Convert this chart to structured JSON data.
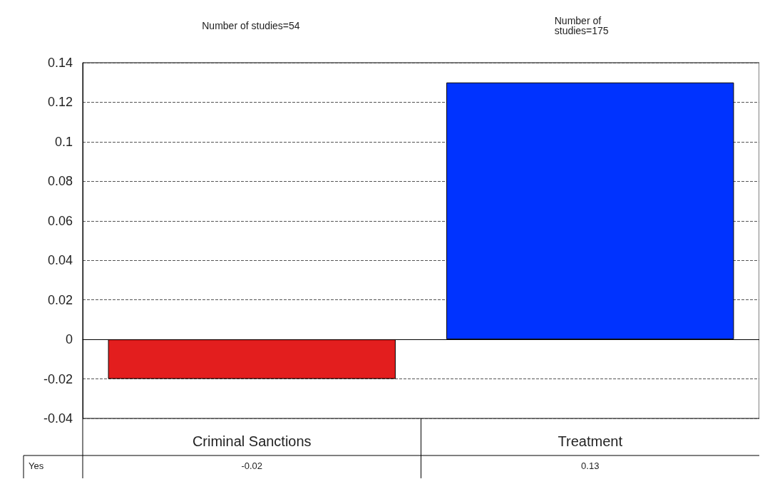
{
  "chart_data": {
    "type": "bar",
    "categories": [
      "Criminal Sanctions",
      "Treatment"
    ],
    "series": [
      {
        "name": "Yes",
        "colors": [
          "#e31e1e",
          "#0033ff"
        ],
        "values": [
          -0.02,
          0.13
        ]
      }
    ],
    "ylim": [
      -0.04,
      0.14
    ],
    "yticks": [
      -0.04,
      -0.02,
      0,
      0.02,
      0.04,
      0.06,
      0.08,
      0.1,
      0.12,
      0.14
    ],
    "grid": "y",
    "data_labels": true,
    "legend": false,
    "annotations": [
      "Number of studies=54",
      "Number of studies=175"
    ]
  }
}
